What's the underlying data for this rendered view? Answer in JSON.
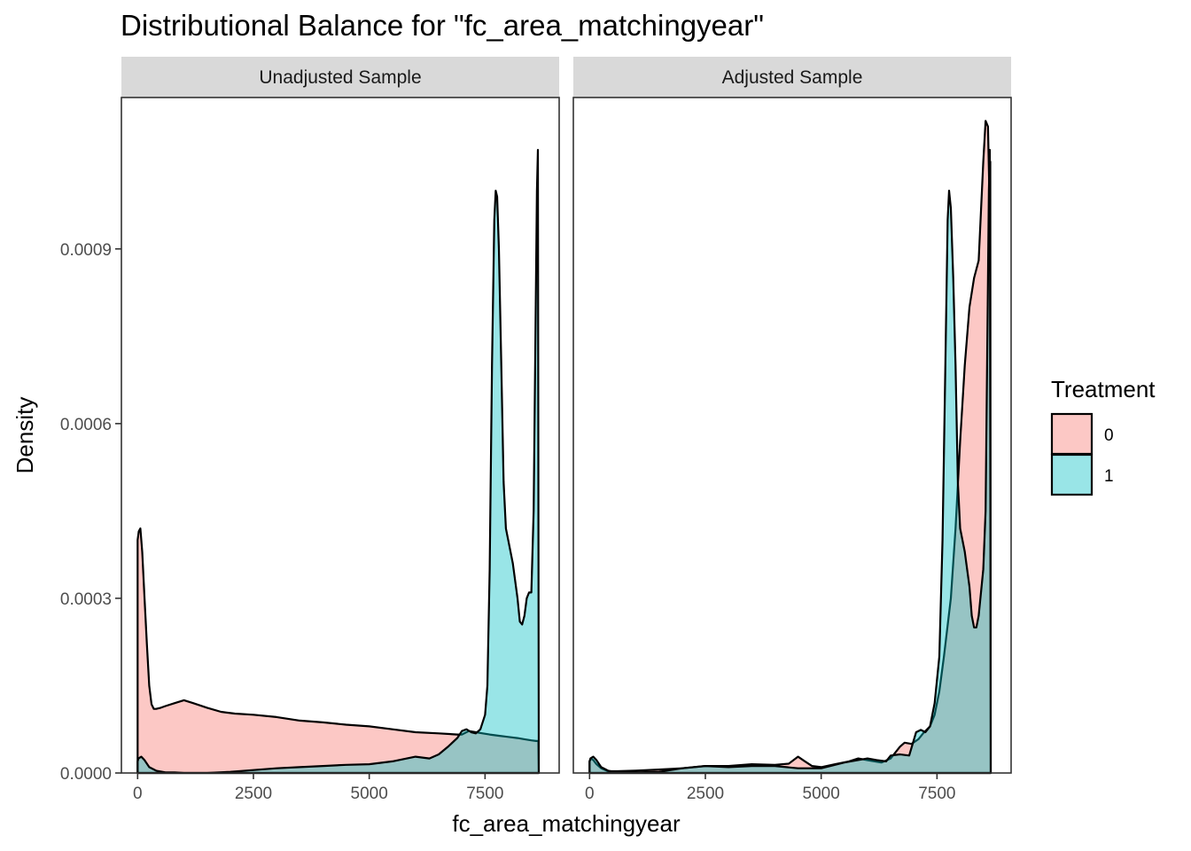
{
  "chart_data": {
    "type": "area",
    "title": "Distributional Balance for \"fc_area_matchingyear\"",
    "xlabel": "fc_area_matchingyear",
    "ylabel": "Density",
    "xlim": [
      -350,
      9100
    ],
    "ylim": [
      0,
      0.00116
    ],
    "x_ticks": [
      0,
      2500,
      5000,
      7500
    ],
    "x_tick_labels": [
      "0",
      "2500",
      "5000",
      "7500"
    ],
    "y_ticks": [
      0,
      0.0003,
      0.0006,
      0.0009
    ],
    "y_tick_labels": [
      "0.0000",
      "0.0003",
      "0.0006",
      "0.0009"
    ],
    "legend": {
      "title": "Treatment",
      "placement": "right",
      "entries": [
        {
          "label": "0",
          "color": "#F8766D"
        },
        {
          "label": "1",
          "color": "#00BFC4"
        }
      ]
    },
    "fill_alpha": 0.4,
    "panels": [
      {
        "label": "Unadjusted Sample",
        "series": [
          {
            "name": "0",
            "color": "#F8766D",
            "x": [
              0,
              25,
              60,
              100,
              150,
              200,
              250,
              300,
              350,
              400,
              500,
              600,
              800,
              1000,
              1200,
              1500,
              1800,
              2100,
              2500,
              3000,
              3500,
              4000,
              4500,
              5000,
              5500,
              6000,
              6500,
              6900,
              7000,
              7150,
              7300,
              7450,
              7600,
              7800,
              8000,
              8200,
              8350,
              8500,
              8600,
              8650,
              8660
            ],
            "y": [
              0.0004,
              0.000415,
              0.00042,
              0.00038,
              0.0003,
              0.00022,
              0.00015,
              0.000118,
              0.00011,
              0.00011,
              0.000112,
              0.000115,
              0.00012,
              0.000125,
              0.00012,
              0.000112,
              0.000105,
              0.000102,
              0.0001,
              9.6e-05,
              9e-05,
              8.7e-05,
              8.3e-05,
              8e-05,
              7.5e-05,
              7e-05,
              6.8e-05,
              6.6e-05,
              6.6e-05,
              7.2e-05,
              7e-05,
              6.8e-05,
              6.6e-05,
              6.4e-05,
              6.2e-05,
              6e-05,
              5.8e-05,
              5.6e-05,
              5.5e-05,
              5.5e-05,
              0
            ]
          },
          {
            "name": "1",
            "color": "#00BFC4",
            "x": [
              0,
              20,
              80,
              150,
              250,
              400,
              600,
              800,
              1000,
              1500,
              2000,
              2500,
              3000,
              3500,
              4000,
              4500,
              5000,
              5500,
              6000,
              6300,
              6500,
              6700,
              6900,
              7000,
              7100,
              7200,
              7300,
              7400,
              7500,
              7550,
              7600,
              7650,
              7700,
              7730,
              7760,
              7800,
              7850,
              7900,
              7950,
              8000,
              8100,
              8200,
              8250,
              8300,
              8350,
              8400,
              8450,
              8500,
              8550,
              8600,
              8620,
              8640,
              8660
            ],
            "y": [
              2e-05,
              2.5e-05,
              2.8e-05,
              2.2e-05,
              1e-05,
              4e-06,
              1e-06,
              1e-06,
              0,
              0,
              2e-06,
              5e-06,
              8e-06,
              1e-05,
              1.2e-05,
              1.4e-05,
              1.5e-05,
              2e-05,
              2.8e-05,
              2.5e-05,
              3.2e-05,
              4.5e-05,
              6e-05,
              7.2e-05,
              7.5e-05,
              7e-05,
              6.8e-05,
              7.5e-05,
              0.0001,
              0.00015,
              0.00035,
              0.0007,
              0.00095,
              0.001,
              0.00099,
              0.0009,
              0.0007,
              0.0005,
              0.00042,
              0.0004,
              0.00036,
              0.0003,
              0.00026,
              0.000255,
              0.00027,
              0.0003,
              0.00031,
              0.00031,
              0.00045,
              0.00085,
              0.001,
              0.00107,
              0
            ]
          }
        ]
      },
      {
        "label": "Adjusted Sample",
        "series": [
          {
            "name": "0",
            "color": "#F8766D",
            "x": [
              0,
              30,
              80,
              150,
              250,
              400,
              600,
              1000,
              1500,
              2000,
              2500,
              3000,
              3500,
              4000,
              4300,
              4500,
              4650,
              4800,
              5000,
              5300,
              5600,
              5800,
              6000,
              6300,
              6500,
              6700,
              6800,
              6950,
              7100,
              7200,
              7350,
              7450,
              7550,
              7650,
              7800,
              7900,
              8000,
              8100,
              8200,
              8300,
              8400,
              8500,
              8550,
              8600,
              8630,
              8650,
              8660
            ],
            "y": [
              2e-05,
              2.5e-05,
              2.2e-05,
              1.5e-05,
              8e-06,
              3e-06,
              3e-06,
              4e-06,
              6e-06,
              8e-06,
              1.2e-05,
              1.2e-05,
              1.5e-05,
              1.4e-05,
              1.6e-05,
              2.8e-05,
              2e-05,
              1.2e-05,
              1e-05,
              1.5e-05,
              2e-05,
              2.5e-05,
              2.2e-05,
              1.8e-05,
              2.5e-05,
              4.5e-05,
              5.2e-05,
              5e-05,
              5.8e-05,
              6.8e-05,
              8e-05,
              0.0001,
              0.00014,
              0.0002,
              0.0003,
              0.00042,
              0.00057,
              0.0007,
              0.0008,
              0.00085,
              0.00088,
              0.00105,
              0.00112,
              0.00111,
              0.001,
              0.00105,
              0
            ]
          },
          {
            "name": "1",
            "color": "#00BFC4",
            "x": [
              0,
              20,
              80,
              150,
              250,
              400,
              600,
              1000,
              1500,
              2000,
              2500,
              3000,
              3500,
              4000,
              4500,
              5000,
              5500,
              6000,
              6200,
              6400,
              6500,
              6700,
              6900,
              7050,
              7150,
              7250,
              7350,
              7450,
              7550,
              7620,
              7680,
              7730,
              7760,
              7800,
              7850,
              7900,
              7950,
              8000,
              8100,
              8200,
              8250,
              8300,
              8350,
              8400,
              8450,
              8500,
              8550,
              8600,
              8620,
              8640,
              8660
            ],
            "y": [
              2e-05,
              2.5e-05,
              2.8e-05,
              2.2e-05,
              1e-05,
              4e-06,
              1e-06,
              1e-06,
              2e-06,
              8e-06,
              1.2e-05,
              1e-05,
              1.2e-05,
              1.2e-05,
              8e-06,
              8e-06,
              1.8e-05,
              2.5e-05,
              2.2e-05,
              2e-05,
              3e-05,
              3.2e-05,
              3e-05,
              7e-05,
              7.4e-05,
              7e-05,
              8e-05,
              0.00012,
              0.0002,
              0.0004,
              0.0007,
              0.00095,
              0.001,
              0.00097,
              0.00085,
              0.0007,
              0.0005,
              0.00042,
              0.00038,
              0.00032,
              0.00027,
              0.00025,
              0.00025,
              0.00027,
              0.00031,
              0.00035,
              0.00045,
              0.00085,
              0.001,
              0.00107,
              0
            ]
          }
        ]
      }
    ]
  }
}
